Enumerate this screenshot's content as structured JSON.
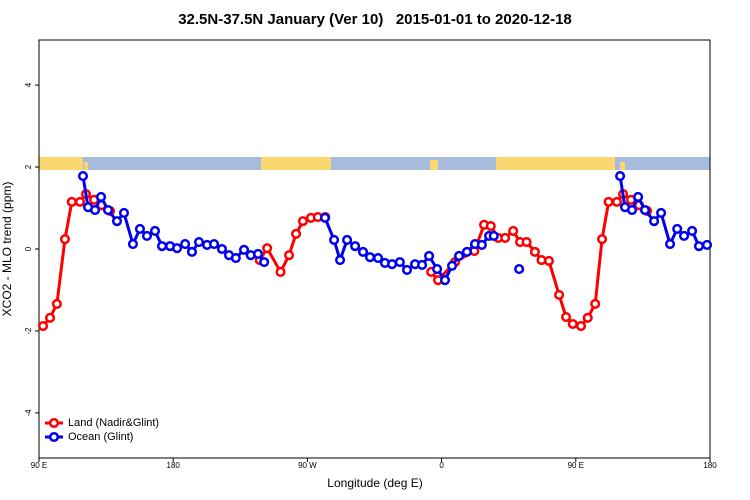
{
  "chart_data": {
    "type": "line",
    "title": "32.5N-37.5N January (Ver 10)   2015-01-01 to 2020-12-18",
    "x_label": "Longitude (deg E)",
    "y_label": "XCO2 - MLO trend (ppm)",
    "xlim": [
      90,
      540
    ],
    "ylim": [
      -5.1,
      5.1
    ],
    "xticks": [
      {
        "value": 90,
        "label": "90 E"
      },
      180,
      {
        "value": 270,
        "label": "90 W"
      },
      {
        "value": 360,
        "label": "0"
      },
      {
        "value": 450,
        "label": "90 E"
      },
      {
        "value": 540,
        "label": "180"
      }
    ],
    "yticks": [
      -4,
      -2,
      0,
      2,
      4
    ],
    "legend": "bottom-left",
    "series": [
      {
        "name": "Land (Nadir&Glint)",
        "color": "#ff0000",
        "x": [
          92.7,
          97.4,
          102,
          107.4,
          112,
          117.5,
          121.5,
          126.9,
          132,
          137.6,
          null,
          238,
          243,
          252,
          257.7,
          262.4,
          267,
          272.4,
          277,
          282,
          null,
          353,
          357.6,
          369,
          382,
          388.5,
          393,
          398,
          402.6,
          408,
          412.6,
          417,
          422.6,
          427,
          432,
          438.8,
          443.5,
          448,
          453.5,
          458,
          463,
          467.6,
          472,
          477.6,
          481.7,
          487,
          492.4,
          497.8
        ],
        "values": [
          -1.88,
          -1.68,
          -1.34,
          0.24,
          1.15,
          1.15,
          1.34,
          1.2,
          1.07,
          0.93,
          null,
          -0.27,
          0.02,
          -0.56,
          -0.15,
          0.37,
          0.68,
          0.76,
          0.78,
          0.78,
          null,
          -0.56,
          -0.76,
          -0.32,
          -0.05,
          0.59,
          0.56,
          0.27,
          0.27,
          0.44,
          0.17,
          0.17,
          -0.07,
          -0.27,
          -0.29,
          -1.12,
          -1.66,
          -1.83,
          -1.88,
          -1.68,
          -1.34,
          0.24,
          1.15,
          1.15,
          1.34,
          1.2,
          1.07,
          0.93
        ]
      },
      {
        "name": "Ocean (Glint)",
        "color": "#0000ee",
        "x": [
          119.5,
          122.9,
          127.6,
          131.6,
          136.3,
          142.3,
          147,
          153,
          157.7,
          162.4,
          167.8,
          172.5,
          177.9,
          182.6,
          188,
          192.6,
          197.3,
          202.7,
          207.4,
          212.7,
          217.4,
          222,
          227.5,
          232,
          236.9,
          241,
          null,
          281.8,
          287.9,
          291.9,
          296.6,
          302,
          307.3,
          312,
          317.4,
          322,
          326.8,
          332,
          336.8,
          342.2,
          346.9,
          351.6,
          357,
          362.3,
          367,
          371.7,
          377,
          382.4,
          387,
          391.8,
          395,
          null,
          412,
          null,
          479.7,
          483,
          487.7,
          491.8,
          496.4,
          502.5,
          507.2,
          513.2,
          518,
          522.6,
          528,
          532.6,
          538
        ],
        "values": [
          1.78,
          1.02,
          0.95,
          1.27,
          0.95,
          0.68,
          0.88,
          0.12,
          0.49,
          0.32,
          0.44,
          0.07,
          0.07,
          0.02,
          0.12,
          -0.07,
          0.17,
          0.1,
          0.12,
          0,
          -0.15,
          -0.22,
          -0.02,
          -0.15,
          -0.12,
          -0.32,
          null,
          0.76,
          0.22,
          -0.27,
          0.22,
          0.07,
          -0.07,
          -0.2,
          -0.22,
          -0.34,
          -0.37,
          -0.32,
          -0.51,
          -0.37,
          -0.39,
          -0.17,
          -0.49,
          -0.76,
          -0.41,
          -0.17,
          -0.07,
          0.12,
          0.1,
          0.32,
          0.32,
          null,
          -0.49,
          null,
          1.78,
          1.02,
          0.95,
          1.27,
          0.95,
          0.68,
          0.88,
          0.12,
          0.49,
          0.32,
          0.44,
          0.07,
          0.1
        ]
      }
    ]
  }
}
